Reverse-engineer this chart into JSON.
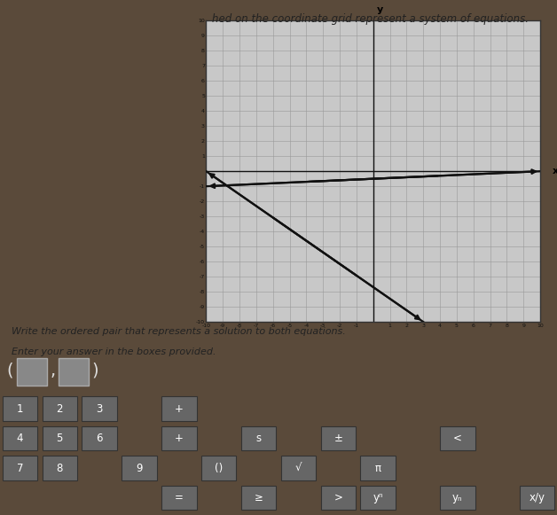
{
  "page_bg": "#5a4a3a",
  "graph_bg": "#c8c8c8",
  "grid_color": "#999999",
  "axis_color": "#111111",
  "line_color": "#111111",
  "text_area_bg": "#d0c8b8",
  "xlim": [
    -10,
    10
  ],
  "ylim": [
    -10,
    10
  ],
  "line1_pts": [
    [
      -10,
      0
    ],
    [
      3,
      -10
    ]
  ],
  "line2_pts": [
    [
      -10,
      -1
    ],
    [
      10,
      0
    ]
  ],
  "xlabel": "x",
  "ylabel": "y",
  "top_text": "hed on the coordinate grid represent a system of equations.",
  "mid_text1": "Write the ordered pair that represents a solution to both equations.",
  "mid_text2": "Enter your answer in the boxes provided.",
  "answer_text": "(□ , □)",
  "keyboard_bg": "#4a4a4a",
  "key_bg": "#666666",
  "key_text": "#ffffff",
  "kb_rows": [
    [
      "1",
      "2",
      "3",
      "",
      "+",
      "",
      "",
      "",
      "",
      ""
    ],
    [
      "4",
      "5",
      "6",
      "",
      "+",
      "",
      "s",
      "",
      "±",
      "",
      "",
      "<"
    ],
    [
      "7",
      "8",
      "",
      "9",
      "",
      "()",
      "",
      "√",
      "",
      "π"
    ],
    [
      "",
      "",
      "",
      "",
      "=",
      "",
      "≥",
      "",
      ">",
      "",
      "yⁿ",
      "",
      "yₙ",
      "",
      "x/y"
    ]
  ]
}
